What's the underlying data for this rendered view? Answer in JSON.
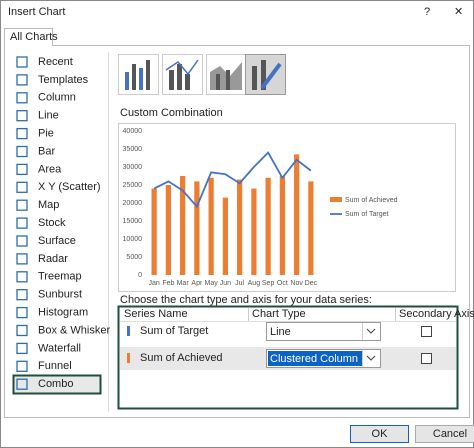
{
  "dialog": {
    "title": "Insert Chart",
    "help": "?",
    "close": "✕"
  },
  "tab": "All Charts",
  "sidebar": [
    "Recent",
    "Templates",
    "Column",
    "Line",
    "Pie",
    "Bar",
    "Area",
    "X Y (Scatter)",
    "Map",
    "Stock",
    "Surface",
    "Radar",
    "Treemap",
    "Sunburst",
    "Histogram",
    "Box & Whisker",
    "Waterfall",
    "Funnel",
    "Combo"
  ],
  "subtype_title": "Custom Combination",
  "chart_data": {
    "type": "combo",
    "categories": [
      "Jan",
      "Feb",
      "Mar",
      "Apr",
      "May",
      "Jun",
      "Jul",
      "Aug",
      "Sep",
      "Oct",
      "Nov",
      "Dec"
    ],
    "series": [
      {
        "name": "Sum of Achieved",
        "chart_type": "Clustered Column",
        "color": "#ed7d31",
        "values": [
          24000,
          25000,
          27500,
          26000,
          27000,
          21500,
          26500,
          24000,
          27000,
          27500,
          33500,
          26000
        ]
      },
      {
        "name": "Sum of Target",
        "chart_type": "Line",
        "color": "#4472c4",
        "values": [
          24000,
          26000,
          23500,
          19000,
          28500,
          28000,
          25500,
          30000,
          34000,
          27000,
          32000,
          29000
        ]
      }
    ],
    "ylim": [
      0,
      40000
    ],
    "yticks": [
      0,
      5000,
      10000,
      15000,
      20000,
      25000,
      30000,
      35000,
      40000
    ],
    "legend": "right"
  },
  "series_table": {
    "prompt": "Choose the chart type and axis for your data series:",
    "columns": [
      "Series Name",
      "Chart Type",
      "Secondary Axis"
    ]
  },
  "buttons": [
    "OK",
    "Cancel"
  ]
}
